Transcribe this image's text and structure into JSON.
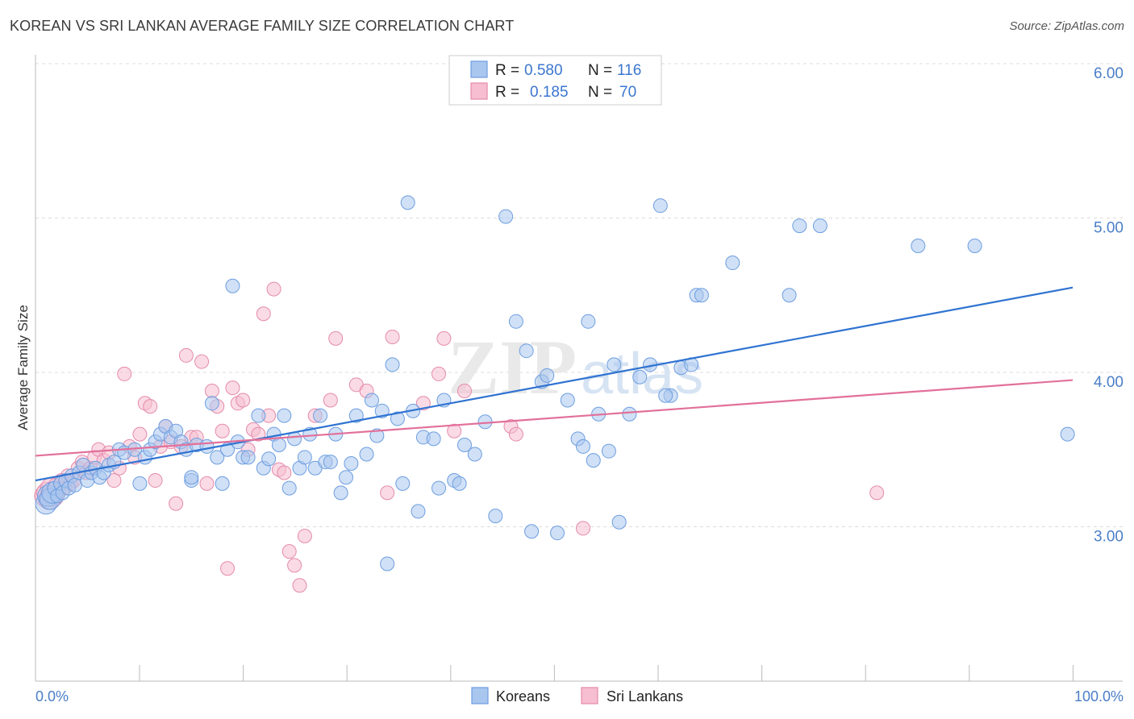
{
  "title": "KOREAN VS SRI LANKAN AVERAGE FAMILY SIZE CORRELATION CHART",
  "source": "Source: ZipAtlas.com",
  "watermark": "ZIPatlas",
  "colors": {
    "korean_fill": "#a9c6ef",
    "korean_stroke": "#6d9ee0",
    "korean_line": "#2f73d1",
    "srilankan_fill": "#f6bed0",
    "srilankan_stroke": "#e58aab",
    "srilankan_line": "#e2709a",
    "tick_label": "#4a7ec7",
    "grid": "#dcdcdc"
  },
  "legend": {
    "r_label": "R =",
    "n_label": "N =",
    "rows": [
      {
        "series": "Koreans",
        "r": "0.580",
        "n": "116"
      },
      {
        "series": "Sri Lankans",
        "r": "0.185",
        "n": "70"
      }
    ]
  },
  "chart_data": {
    "type": "scatter",
    "title": "KOREAN VS SRI LANKAN AVERAGE FAMILY SIZE CORRELATION CHART",
    "xlabel": "",
    "ylabel": "Average Family Size",
    "xlim": [
      0,
      100
    ],
    "ylim": [
      2.0,
      6.1
    ],
    "x_tick_labels": [
      "0.0%",
      "100.0%"
    ],
    "y_ticks": [
      3.0,
      4.0,
      5.0,
      6.0
    ],
    "y_tick_labels": [
      "3.00",
      "4.00",
      "5.00",
      "6.00"
    ],
    "grid": true,
    "legend_placement": "bottom-center",
    "series": [
      {
        "name": "Koreans",
        "trend": {
          "x": [
            0,
            100
          ],
          "y": [
            3.3,
            4.55
          ]
        },
        "points": [
          [
            0.4,
            3.15
          ],
          [
            0.6,
            3.2
          ],
          [
            0.8,
            3.18
          ],
          [
            1.0,
            3.22
          ],
          [
            1.2,
            3.25
          ],
          [
            1.5,
            3.2
          ],
          [
            1.8,
            3.28
          ],
          [
            2.0,
            3.22
          ],
          [
            2.3,
            3.3
          ],
          [
            2.6,
            3.25
          ],
          [
            2.9,
            3.33
          ],
          [
            3.2,
            3.27
          ],
          [
            3.6,
            3.35
          ],
          [
            4.0,
            3.4
          ],
          [
            4.4,
            3.3
          ],
          [
            4.8,
            3.35
          ],
          [
            5.2,
            3.38
          ],
          [
            5.6,
            3.32
          ],
          [
            6.0,
            3.35
          ],
          [
            6.5,
            3.4
          ],
          [
            7.0,
            3.42
          ],
          [
            7.5,
            3.5
          ],
          [
            8.0,
            3.48
          ],
          [
            9.0,
            3.5
          ],
          [
            9.5,
            3.28
          ],
          [
            10.0,
            3.45
          ],
          [
            10.5,
            3.5
          ],
          [
            11.0,
            3.55
          ],
          [
            11.5,
            3.6
          ],
          [
            12.0,
            3.65
          ],
          [
            12.5,
            3.58
          ],
          [
            13.0,
            3.62
          ],
          [
            13.5,
            3.55
          ],
          [
            14.0,
            3.5
          ],
          [
            14.5,
            3.3
          ],
          [
            15.0,
            3.53
          ],
          [
            16.0,
            3.52
          ],
          [
            16.5,
            3.8
          ],
          [
            17.0,
            3.45
          ],
          [
            17.5,
            3.28
          ],
          [
            18.0,
            3.5
          ],
          [
            18.5,
            4.56
          ],
          [
            19.0,
            3.55
          ],
          [
            19.5,
            3.45
          ],
          [
            20.0,
            3.45
          ],
          [
            21.0,
            3.72
          ],
          [
            21.5,
            3.38
          ],
          [
            22.0,
            3.44
          ],
          [
            22.5,
            3.6
          ],
          [
            23.0,
            3.53
          ],
          [
            23.5,
            3.72
          ],
          [
            24.0,
            3.25
          ],
          [
            24.5,
            3.57
          ],
          [
            25.0,
            3.38
          ],
          [
            25.5,
            3.45
          ],
          [
            26.0,
            3.6
          ],
          [
            26.5,
            3.38
          ],
          [
            27.0,
            3.72
          ],
          [
            27.5,
            3.42
          ],
          [
            28.0,
            3.42
          ],
          [
            28.5,
            3.6
          ],
          [
            29.0,
            3.22
          ],
          [
            29.5,
            3.32
          ],
          [
            30.0,
            3.41
          ],
          [
            30.5,
            3.72
          ],
          [
            31.5,
            3.47
          ],
          [
            32.0,
            3.82
          ],
          [
            32.5,
            3.59
          ],
          [
            33.0,
            3.75
          ],
          [
            33.5,
            2.76
          ],
          [
            34.0,
            4.05
          ],
          [
            34.5,
            3.7
          ],
          [
            35.0,
            3.28
          ],
          [
            35.5,
            5.1
          ],
          [
            36.0,
            3.75
          ],
          [
            36.5,
            3.1
          ],
          [
            37.0,
            3.58
          ],
          [
            38.0,
            3.57
          ],
          [
            38.5,
            3.25
          ],
          [
            39.0,
            3.82
          ],
          [
            40.0,
            3.3
          ],
          [
            40.5,
            3.28
          ],
          [
            41.0,
            3.53
          ],
          [
            42.0,
            3.47
          ],
          [
            43.0,
            3.68
          ],
          [
            44.0,
            3.07
          ],
          [
            45.0,
            5.01
          ],
          [
            46.0,
            4.33
          ],
          [
            47.0,
            4.14
          ],
          [
            47.5,
            2.97
          ],
          [
            48.5,
            3.94
          ],
          [
            49.0,
            3.98
          ],
          [
            50.0,
            2.96
          ],
          [
            51.0,
            3.82
          ],
          [
            52.0,
            3.57
          ],
          [
            52.5,
            3.52
          ],
          [
            53.0,
            4.33
          ],
          [
            53.5,
            3.43
          ],
          [
            54.0,
            3.73
          ],
          [
            55.0,
            3.49
          ],
          [
            55.5,
            4.05
          ],
          [
            56.0,
            3.03
          ],
          [
            57.0,
            3.73
          ],
          [
            58.0,
            3.97
          ],
          [
            59.0,
            4.05
          ],
          [
            60.0,
            5.08
          ],
          [
            61.0,
            3.85
          ],
          [
            62.0,
            4.03
          ],
          [
            63.0,
            4.05
          ],
          [
            63.5,
            4.5
          ],
          [
            64.0,
            4.5
          ],
          [
            67.0,
            4.71
          ],
          [
            72.5,
            4.5
          ],
          [
            73.5,
            4.95
          ],
          [
            75.5,
            4.95
          ],
          [
            85.0,
            4.82
          ],
          [
            90.5,
            4.82
          ],
          [
            99.5,
            3.6
          ],
          [
            60.5,
            3.85
          ],
          [
            14.5,
            3.32
          ]
        ]
      },
      {
        "name": "Sri Lankans",
        "trend": {
          "x": [
            0,
            100
          ],
          "y": [
            3.46,
            3.95
          ]
        },
        "points": [
          [
            0.3,
            3.2
          ],
          [
            0.5,
            3.22
          ],
          [
            0.7,
            3.18
          ],
          [
            0.9,
            3.25
          ],
          [
            1.1,
            3.2
          ],
          [
            1.3,
            3.27
          ],
          [
            1.6,
            3.22
          ],
          [
            1.9,
            3.3
          ],
          [
            2.2,
            3.25
          ],
          [
            2.5,
            3.33
          ],
          [
            2.8,
            3.28
          ],
          [
            3.1,
            3.3
          ],
          [
            3.5,
            3.38
          ],
          [
            3.9,
            3.42
          ],
          [
            4.3,
            3.35
          ],
          [
            4.7,
            3.38
          ],
          [
            5.1,
            3.45
          ],
          [
            5.5,
            3.5
          ],
          [
            6.0,
            3.43
          ],
          [
            6.5,
            3.48
          ],
          [
            7.0,
            3.3
          ],
          [
            7.5,
            3.38
          ],
          [
            8.0,
            3.99
          ],
          [
            8.5,
            3.52
          ],
          [
            9.0,
            3.45
          ],
          [
            9.5,
            3.6
          ],
          [
            10.0,
            3.8
          ],
          [
            10.5,
            3.78
          ],
          [
            11.0,
            3.3
          ],
          [
            11.5,
            3.52
          ],
          [
            12.0,
            3.65
          ],
          [
            12.5,
            3.55
          ],
          [
            13.0,
            3.15
          ],
          [
            13.5,
            3.52
          ],
          [
            14.0,
            4.11
          ],
          [
            14.5,
            3.58
          ],
          [
            15.0,
            3.58
          ],
          [
            15.5,
            4.07
          ],
          [
            16.0,
            3.28
          ],
          [
            16.5,
            3.88
          ],
          [
            17.0,
            3.78
          ],
          [
            17.5,
            3.62
          ],
          [
            18.0,
            2.73
          ],
          [
            18.5,
            3.9
          ],
          [
            19.0,
            3.8
          ],
          [
            19.5,
            3.82
          ],
          [
            20.0,
            3.5
          ],
          [
            20.5,
            3.63
          ],
          [
            21.0,
            3.6
          ],
          [
            21.5,
            4.38
          ],
          [
            22.0,
            3.72
          ],
          [
            22.5,
            4.54
          ],
          [
            23.0,
            3.37
          ],
          [
            23.5,
            3.35
          ],
          [
            24.0,
            2.84
          ],
          [
            24.5,
            2.75
          ],
          [
            25.0,
            2.62
          ],
          [
            25.5,
            2.94
          ],
          [
            26.5,
            3.72
          ],
          [
            28.0,
            3.82
          ],
          [
            28.5,
            4.22
          ],
          [
            30.5,
            3.92
          ],
          [
            31.5,
            3.88
          ],
          [
            33.5,
            3.22
          ],
          [
            34.0,
            4.23
          ],
          [
            37.0,
            3.8
          ],
          [
            38.5,
            3.99
          ],
          [
            39.0,
            4.22
          ],
          [
            40.0,
            3.62
          ],
          [
            41.0,
            3.88
          ],
          [
            45.5,
            3.65
          ],
          [
            46.0,
            3.6
          ],
          [
            52.5,
            2.99
          ],
          [
            81.0,
            3.22
          ]
        ]
      }
    ]
  },
  "bottom_legend": [
    {
      "label": "Koreans"
    },
    {
      "label": "Sri Lankans"
    }
  ]
}
